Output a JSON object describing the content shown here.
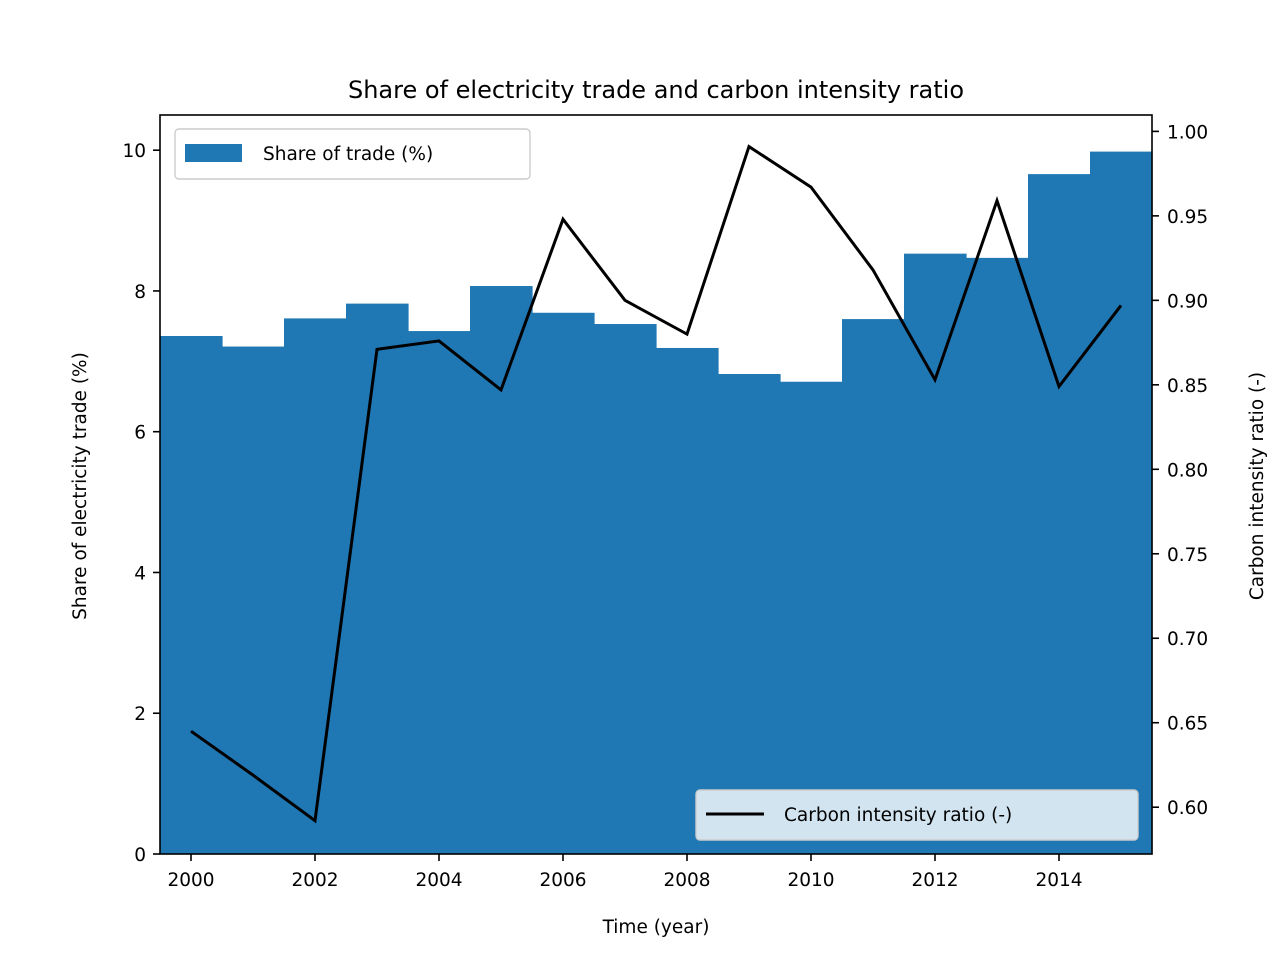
{
  "chart_data": {
    "type": "bar",
    "title": "Share of electricity trade and carbon intensity ratio",
    "xlabel": "Time (year)",
    "ylabel": "Share of electricity trade (%)",
    "ylabel_right": "Carbon intensity ratio (-)",
    "x": [
      2000,
      2001,
      2002,
      2003,
      2004,
      2005,
      2006,
      2007,
      2008,
      2009,
      2010,
      2011,
      2012,
      2013,
      2014,
      2015
    ],
    "xlim": [
      1999.5,
      2015.5
    ],
    "xticks": [
      "2000",
      "2002",
      "2004",
      "2006",
      "2008",
      "2010",
      "2012",
      "2014"
    ],
    "ylim": [
      0,
      10.5
    ],
    "yticks": [
      "0",
      "2",
      "4",
      "6",
      "8",
      "10"
    ],
    "ylim_right": [
      0.5723,
      1.0097
    ],
    "yticks_right": [
      "0.60",
      "0.65",
      "0.70",
      "0.75",
      "0.80",
      "0.85",
      "0.90",
      "0.95",
      "1.00"
    ],
    "grid": false,
    "series": [
      {
        "name": "Share of trade (%)",
        "type": "bar",
        "axis": "left",
        "color": "#1f77b4",
        "values": [
          7.36,
          7.21,
          7.61,
          7.82,
          7.43,
          8.07,
          7.69,
          7.53,
          7.19,
          6.82,
          6.71,
          7.6,
          8.53,
          8.47,
          9.66,
          9.98
        ]
      },
      {
        "name": "Carbon intensity ratio (-)",
        "type": "line",
        "axis": "right",
        "color": "#000000",
        "values": [
          0.645,
          0.619,
          0.592,
          0.871,
          0.876,
          0.847,
          0.948,
          0.9,
          0.88,
          0.991,
          0.967,
          0.918,
          0.853,
          0.959,
          0.849,
          0.897
        ]
      }
    ],
    "legends": [
      {
        "series": "Share of trade (%)",
        "placement": "upper left"
      },
      {
        "series": "Carbon intensity ratio (-)",
        "placement": "lower right"
      }
    ]
  }
}
